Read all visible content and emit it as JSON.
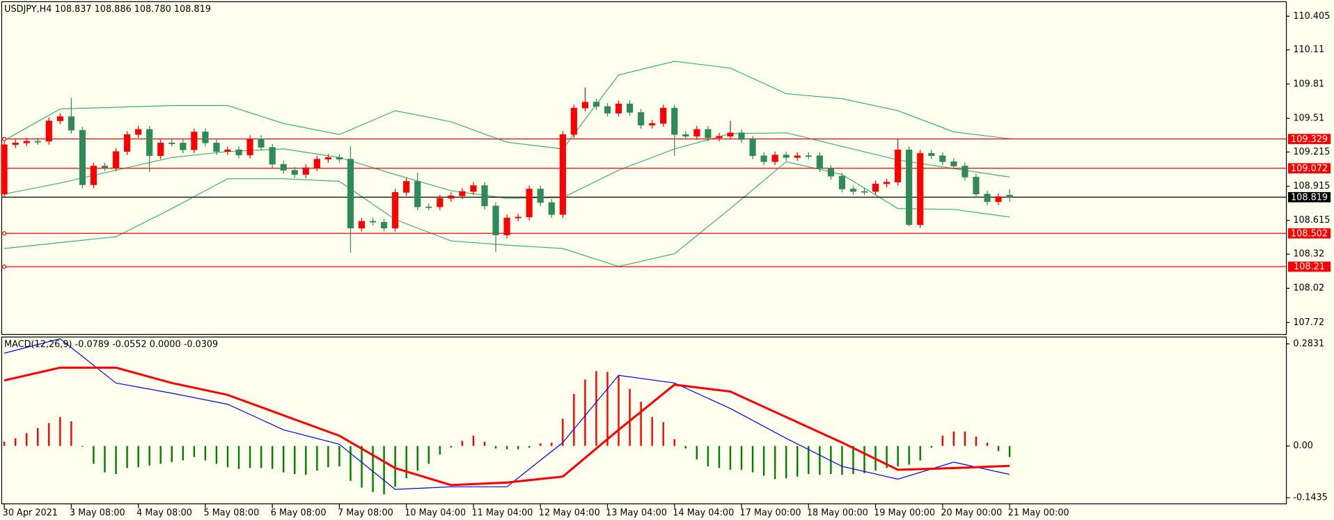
{
  "chart_data": [
    {
      "type": "candlestick",
      "title": "USDJPY,H4  108.837 108.886 108.780 108.819",
      "up_color": "#ff0000",
      "down_color": "#2e8b57",
      "ylim": [
        107.616,
        110.532
      ],
      "yticks": [
        110.405,
        110.11,
        109.81,
        109.51,
        109.215,
        108.915,
        108.615,
        108.32,
        108.02,
        107.72
      ],
      "levels": [
        109.329,
        109.072,
        108.502,
        108.21
      ],
      "level_color": "#ff0000",
      "last_price": 108.819,
      "open": [
        108.846,
        109.279,
        109.294,
        109.309,
        109.309,
        109.488,
        109.525,
        109.406,
        108.928,
        109.092,
        109.077,
        109.219,
        109.368,
        109.413,
        109.182,
        109.294,
        109.294,
        109.234,
        109.391,
        109.294,
        109.219,
        109.234,
        109.189,
        109.331,
        109.256,
        109.107,
        109.055,
        109.018,
        109.077,
        109.152,
        109.167,
        109.152,
        108.548,
        108.608,
        108.6,
        108.548,
        108.861,
        108.958,
        108.734,
        108.734,
        108.809,
        108.831,
        108.869,
        108.921,
        108.742,
        108.488,
        108.637,
        108.645,
        108.891,
        108.772,
        108.667,
        109.368,
        109.6,
        109.652,
        109.614,
        109.555,
        109.637,
        109.562,
        109.45,
        109.465,
        109.6,
        109.368,
        109.353,
        109.413,
        109.339,
        109.353,
        109.383,
        109.324,
        109.182,
        109.13,
        109.189,
        109.167,
        109.182,
        109.182,
        109.07,
        109.003,
        108.891,
        108.869,
        108.869,
        108.936,
        108.951,
        109.234,
        108.578,
        109.204,
        109.182,
        109.13,
        109.092,
        108.995,
        108.846,
        108.779,
        108.837
      ],
      "high": [
        109.309,
        109.324,
        109.339,
        109.339,
        109.518,
        109.555,
        109.689,
        109.436,
        109.122,
        109.122,
        109.249,
        109.398,
        109.443,
        109.443,
        109.324,
        109.324,
        109.324,
        109.421,
        109.421,
        109.324,
        109.264,
        109.264,
        109.361,
        109.361,
        109.286,
        109.137,
        109.085,
        109.107,
        109.182,
        109.197,
        109.197,
        109.264,
        108.638,
        108.638,
        108.63,
        108.891,
        108.988,
        109.033,
        108.764,
        108.839,
        108.861,
        108.899,
        108.951,
        108.951,
        108.772,
        108.667,
        108.675,
        108.921,
        108.921,
        108.802,
        109.398,
        109.63,
        109.779,
        109.682,
        109.644,
        109.667,
        109.667,
        109.592,
        109.495,
        109.63,
        109.63,
        109.398,
        109.443,
        109.443,
        109.383,
        109.488,
        109.413,
        109.354,
        109.212,
        109.219,
        109.219,
        109.212,
        109.212,
        109.212,
        109.1,
        109.033,
        108.921,
        108.899,
        108.966,
        108.981,
        109.331,
        109.264,
        109.234,
        109.234,
        109.212,
        109.16,
        109.122,
        109.025,
        108.876,
        108.854,
        108.886
      ],
      "low": [
        108.816,
        109.249,
        109.264,
        109.279,
        109.279,
        109.458,
        109.376,
        108.898,
        108.898,
        109.047,
        109.047,
        109.189,
        109.338,
        109.04,
        109.152,
        109.264,
        109.204,
        109.204,
        109.264,
        109.189,
        109.189,
        109.159,
        109.159,
        109.226,
        109.077,
        109.025,
        108.988,
        108.988,
        109.047,
        109.122,
        109.122,
        108.332,
        108.518,
        108.57,
        108.518,
        108.518,
        108.831,
        108.704,
        108.704,
        108.704,
        108.779,
        108.801,
        108.839,
        108.712,
        108.34,
        108.458,
        108.607,
        108.615,
        108.742,
        108.637,
        108.637,
        109.338,
        109.57,
        109.584,
        109.525,
        109.525,
        109.532,
        109.42,
        109.42,
        109.435,
        109.182,
        109.323,
        109.323,
        109.309,
        109.309,
        109.323,
        109.294,
        109.152,
        109.1,
        109.1,
        109.137,
        109.137,
        109.152,
        109.04,
        108.973,
        108.861,
        108.839,
        108.839,
        108.839,
        108.906,
        108.921,
        108.563,
        108.548,
        109.152,
        109.1,
        109.062,
        108.965,
        108.816,
        108.749,
        108.749,
        108.78
      ],
      "close": [
        109.279,
        109.294,
        109.309,
        109.309,
        109.488,
        109.525,
        109.406,
        108.928,
        109.092,
        109.077,
        109.219,
        109.368,
        109.413,
        109.182,
        109.294,
        109.294,
        109.234,
        109.391,
        109.294,
        109.219,
        109.234,
        109.189,
        109.331,
        109.256,
        109.107,
        109.055,
        109.018,
        109.077,
        109.152,
        109.167,
        109.152,
        108.548,
        108.608,
        108.6,
        108.548,
        108.861,
        108.958,
        108.734,
        108.734,
        108.809,
        108.831,
        108.869,
        108.921,
        108.742,
        108.488,
        108.637,
        108.645,
        108.891,
        108.772,
        108.667,
        109.368,
        109.6,
        109.652,
        109.614,
        109.555,
        109.637,
        109.562,
        109.45,
        109.465,
        109.6,
        109.368,
        109.353,
        109.413,
        109.339,
        109.353,
        109.383,
        109.324,
        109.182,
        109.13,
        109.189,
        109.167,
        109.182,
        109.182,
        109.07,
        109.003,
        108.891,
        108.869,
        108.869,
        108.936,
        108.951,
        109.234,
        108.578,
        109.204,
        109.182,
        109.13,
        109.092,
        108.995,
        108.846,
        108.779,
        108.824,
        108.819
      ],
      "band_color": "#3cb371",
      "band_x": [
        0,
        5,
        10,
        15,
        20,
        25,
        30,
        35,
        40,
        45,
        50,
        55,
        60,
        65,
        70,
        75,
        80,
        85,
        90
      ],
      "bands": [
        {
          "values": [
            109.316,
            109.592,
            109.607,
            109.622,
            109.622,
            109.465,
            109.368,
            109.577,
            109.48,
            109.301,
            109.242,
            109.89,
            110.01,
            109.95,
            109.726,
            109.682,
            109.577,
            109.391,
            109.331
          ]
        },
        {
          "values": [
            108.846,
            108.943,
            109.055,
            109.167,
            109.219,
            109.242,
            109.167,
            109.018,
            108.876,
            108.809,
            108.816,
            109.055,
            109.242,
            109.376,
            109.383,
            109.264,
            109.145,
            109.07,
            108.995
          ]
        },
        {
          "values": [
            108.369,
            108.421,
            108.473,
            108.719,
            108.981,
            108.981,
            108.958,
            108.623,
            108.436,
            108.399,
            108.369,
            108.212,
            108.324,
            108.719,
            109.13,
            109.018,
            108.719,
            108.712,
            108.645
          ]
        }
      ],
      "categories": [
        "30 Apr 2021",
        "3 May 08:00",
        "4 May 08:00",
        "5 May 08:00",
        "6 May 08:00",
        "7 May 08:00",
        "10 May 04:00",
        "11 May 04:00",
        "12 May 04:00",
        "13 May 04:00",
        "14 May 04:00",
        "17 May 00:00",
        "18 May 00:00",
        "19 May 00:00",
        "20 May 00:00",
        "21 May 00:00"
      ]
    },
    {
      "type": "macd",
      "title": "MACD(12,26,9) -0.0789 -0.0552 0.0000 -0.0309",
      "ylim": [
        -0.1604,
        0.2996
      ],
      "yticks": [
        0.2831,
        {
          "value": 0,
          "label": "0.00"
        },
        -0.1435
      ],
      "pos_color": "#ff0000",
      "neg_color": "#008000",
      "histogram": [
        0.0118,
        0.0212,
        0.0354,
        0.0495,
        0.0637,
        0.0802,
        0.0684,
        -0.0024,
        -0.0495,
        -0.0731,
        -0.0778,
        -0.0613,
        -0.059,
        -0.0542,
        -0.0495,
        -0.0448,
        -0.0401,
        -0.0307,
        -0.0401,
        -0.0495,
        -0.059,
        -0.0637,
        -0.0613,
        -0.0613,
        -0.0637,
        -0.0731,
        -0.0778,
        -0.0802,
        -0.0684,
        -0.059,
        -0.0566,
        -0.0967,
        -0.1156,
        -0.1274,
        -0.1344,
        -0.1132,
        -0.0896,
        -0.0684,
        -0.0495,
        -0.0236,
        -0.0047,
        0.0142,
        0.0283,
        0.0118,
        -0.0071,
        -0.0094,
        -0.0094,
        -0.0047,
        0.0071,
        0.0094,
        0.0755,
        0.1439,
        0.184,
        0.2075,
        0.2052,
        0.1958,
        0.158,
        0.1226,
        0.0802,
        0.066,
        0.0189,
        -0.0071,
        -0.0377,
        -0.0566,
        -0.0613,
        -0.066,
        -0.066,
        -0.0731,
        -0.0825,
        -0.092,
        -0.0896,
        -0.0849,
        -0.0778,
        -0.0802,
        -0.0778,
        -0.0802,
        -0.0778,
        -0.0755,
        -0.0684,
        -0.0613,
        -0.0566,
        -0.0519,
        -0.0401,
        -0.0047,
        0.0283,
        0.0401,
        0.0401,
        0.0259,
        0.0094,
        -0.0142,
        -0.0309
      ],
      "x": [
        0,
        5,
        10,
        15,
        20,
        25,
        30,
        35,
        40,
        45,
        50,
        55,
        60,
        65,
        70,
        75,
        80,
        85,
        90
      ],
      "series": [
        {
          "color": "#0000ff",
          "values": [
            0.2571,
            0.2972,
            0.1745,
            0.1462,
            0.1156,
            0.0448,
            0.0047,
            -0.1203,
            -0.1132,
            -0.1132,
            0.0094,
            0.1958,
            0.1745,
            0.1038,
            0.0212,
            -0.0566,
            -0.092,
            -0.0448,
            -0.0789
          ]
        },
        {
          "color": "#ff0000",
          "values": [
            0.1816,
            0.217,
            0.217,
            0.1745,
            0.1415,
            0.0849,
            0.0283,
            -0.0613,
            -0.1085,
            -0.1014,
            -0.0849,
            0.0448,
            0.1698,
            0.1509,
            0.0802,
            0.0094,
            -0.066,
            -0.0613,
            -0.0552
          ]
        }
      ]
    }
  ]
}
